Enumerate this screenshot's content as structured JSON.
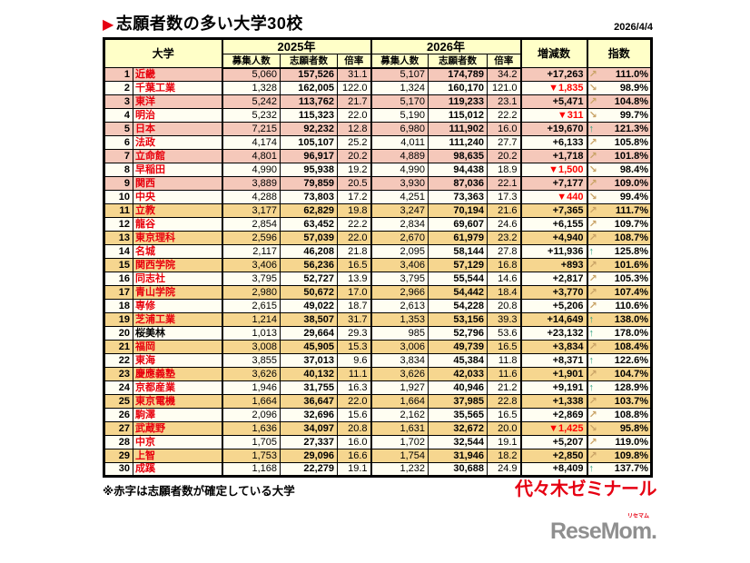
{
  "title": "志願者数の多い大学30校",
  "date": "2026/4/4",
  "footnote": "※赤字は志願者数が確定している大学",
  "logos": {
    "yoyogi": "代々木ゼミナール",
    "resemom": "ReseMom.",
    "resemom_kana": "リセマム"
  },
  "colors": {
    "accent_red": "#e60012",
    "row_pink": "#f5c8ba",
    "row_tan": "#f6d68f",
    "header_yellow": "#ffffc8",
    "arrow_tan": "#c9a366",
    "arrow_green": "#2fa183",
    "negative_red": "#ff0000"
  },
  "table": {
    "headers": {
      "university": "大学",
      "y2025": "2025年",
      "y2026": "2026年",
      "recruit": "募集人数",
      "applicants": "志願者数",
      "ratio": "倍率",
      "change": "増減数",
      "index": "指数"
    },
    "rows": [
      {
        "rank": 1,
        "name": "近畿",
        "confirmed": true,
        "recruit_2025": "5,060",
        "applicants_2025": "157,526",
        "ratio_2025": "31.1",
        "recruit_2026": "5,107",
        "applicants_2026": "174,789",
        "ratio_2026": "34.2",
        "change": "+17,263",
        "arrow": "up-right",
        "index": "111.0%"
      },
      {
        "rank": 2,
        "name": "千葉工業",
        "confirmed": true,
        "recruit_2025": "1,328",
        "applicants_2025": "162,005",
        "ratio_2025": "122.0",
        "recruit_2026": "1,324",
        "applicants_2026": "160,170",
        "ratio_2026": "121.0",
        "change": "▼1,835",
        "arrow": "down-right",
        "index": "98.9%"
      },
      {
        "rank": 3,
        "name": "東洋",
        "confirmed": true,
        "recruit_2025": "5,242",
        "applicants_2025": "113,762",
        "ratio_2025": "21.7",
        "recruit_2026": "5,170",
        "applicants_2026": "119,233",
        "ratio_2026": "23.1",
        "change": "+5,471",
        "arrow": "up-right",
        "index": "104.8%"
      },
      {
        "rank": 4,
        "name": "明治",
        "confirmed": true,
        "recruit_2025": "5,232",
        "applicants_2025": "115,323",
        "ratio_2025": "22.0",
        "recruit_2026": "5,190",
        "applicants_2026": "115,012",
        "ratio_2026": "22.2",
        "change": "▼311",
        "arrow": "down-right",
        "index": "99.7%"
      },
      {
        "rank": 5,
        "name": "日本",
        "confirmed": true,
        "recruit_2025": "7,215",
        "applicants_2025": "92,232",
        "ratio_2025": "12.8",
        "recruit_2026": "6,980",
        "applicants_2026": "111,902",
        "ratio_2026": "16.0",
        "change": "+19,670",
        "arrow": "up",
        "index": "121.3%"
      },
      {
        "rank": 6,
        "name": "法政",
        "confirmed": true,
        "recruit_2025": "4,174",
        "applicants_2025": "105,107",
        "ratio_2025": "25.2",
        "recruit_2026": "4,011",
        "applicants_2026": "111,240",
        "ratio_2026": "27.7",
        "change": "+6,133",
        "arrow": "up-right",
        "index": "105.8%"
      },
      {
        "rank": 7,
        "name": "立命館",
        "confirmed": true,
        "recruit_2025": "4,801",
        "applicants_2025": "96,917",
        "ratio_2025": "20.2",
        "recruit_2026": "4,889",
        "applicants_2026": "98,635",
        "ratio_2026": "20.2",
        "change": "+1,718",
        "arrow": "up-right",
        "index": "101.8%"
      },
      {
        "rank": 8,
        "name": "早稲田",
        "confirmed": true,
        "recruit_2025": "4,990",
        "applicants_2025": "95,938",
        "ratio_2025": "19.2",
        "recruit_2026": "4,990",
        "applicants_2026": "94,438",
        "ratio_2026": "18.9",
        "change": "▼1,500",
        "arrow": "down-right",
        "index": "98.4%"
      },
      {
        "rank": 9,
        "name": "関西",
        "confirmed": true,
        "recruit_2025": "3,889",
        "applicants_2025": "79,859",
        "ratio_2025": "20.5",
        "recruit_2026": "3,930",
        "applicants_2026": "87,036",
        "ratio_2026": "22.1",
        "change": "+7,177",
        "arrow": "up-right",
        "index": "109.0%"
      },
      {
        "rank": 10,
        "name": "中央",
        "confirmed": true,
        "recruit_2025": "4,288",
        "applicants_2025": "73,803",
        "ratio_2025": "17.2",
        "recruit_2026": "4,251",
        "applicants_2026": "73,363",
        "ratio_2026": "17.3",
        "change": "▼440",
        "arrow": "down-right",
        "index": "99.4%"
      },
      {
        "rank": 11,
        "name": "立教",
        "confirmed": true,
        "recruit_2025": "3,177",
        "applicants_2025": "62,829",
        "ratio_2025": "19.8",
        "recruit_2026": "3,247",
        "applicants_2026": "70,194",
        "ratio_2026": "21.6",
        "change": "+7,365",
        "arrow": "up-right",
        "index": "111.7%"
      },
      {
        "rank": 12,
        "name": "龍谷",
        "confirmed": true,
        "recruit_2025": "2,854",
        "applicants_2025": "63,452",
        "ratio_2025": "22.2",
        "recruit_2026": "2,834",
        "applicants_2026": "69,607",
        "ratio_2026": "24.6",
        "change": "+6,155",
        "arrow": "up-right",
        "index": "109.7%"
      },
      {
        "rank": 13,
        "name": "東京理科",
        "confirmed": true,
        "recruit_2025": "2,596",
        "applicants_2025": "57,039",
        "ratio_2025": "22.0",
        "recruit_2026": "2,670",
        "applicants_2026": "61,979",
        "ratio_2026": "23.2",
        "change": "+4,940",
        "arrow": "up-right",
        "index": "108.7%"
      },
      {
        "rank": 14,
        "name": "名城",
        "confirmed": true,
        "recruit_2025": "2,117",
        "applicants_2025": "46,208",
        "ratio_2025": "21.8",
        "recruit_2026": "2,095",
        "applicants_2026": "58,144",
        "ratio_2026": "27.8",
        "change": "+11,936",
        "arrow": "up",
        "index": "125.8%"
      },
      {
        "rank": 15,
        "name": "関西学院",
        "confirmed": true,
        "recruit_2025": "3,406",
        "applicants_2025": "56,236",
        "ratio_2025": "16.5",
        "recruit_2026": "3,406",
        "applicants_2026": "57,129",
        "ratio_2026": "16.8",
        "change": "+893",
        "arrow": "up-right",
        "index": "101.6%"
      },
      {
        "rank": 16,
        "name": "同志社",
        "confirmed": true,
        "recruit_2025": "3,795",
        "applicants_2025": "52,727",
        "ratio_2025": "13.9",
        "recruit_2026": "3,795",
        "applicants_2026": "55,544",
        "ratio_2026": "14.6",
        "change": "+2,817",
        "arrow": "up-right",
        "index": "105.3%"
      },
      {
        "rank": 17,
        "name": "青山学院",
        "confirmed": true,
        "recruit_2025": "2,980",
        "applicants_2025": "50,672",
        "ratio_2025": "17.0",
        "recruit_2026": "2,966",
        "applicants_2026": "54,442",
        "ratio_2026": "18.4",
        "change": "+3,770",
        "arrow": "up-right",
        "index": "107.4%"
      },
      {
        "rank": 18,
        "name": "専修",
        "confirmed": true,
        "recruit_2025": "2,615",
        "applicants_2025": "49,022",
        "ratio_2025": "18.7",
        "recruit_2026": "2,613",
        "applicants_2026": "54,228",
        "ratio_2026": "20.8",
        "change": "+5,206",
        "arrow": "up-right",
        "index": "110.6%"
      },
      {
        "rank": 19,
        "name": "芝浦工業",
        "confirmed": true,
        "recruit_2025": "1,214",
        "applicants_2025": "38,507",
        "ratio_2025": "31.7",
        "recruit_2026": "1,353",
        "applicants_2026": "53,156",
        "ratio_2026": "39.3",
        "change": "+14,649",
        "arrow": "up",
        "index": "138.0%"
      },
      {
        "rank": 20,
        "name": "桜美林",
        "confirmed": false,
        "recruit_2025": "1,013",
        "applicants_2025": "29,664",
        "ratio_2025": "29.3",
        "recruit_2026": "985",
        "applicants_2026": "52,796",
        "ratio_2026": "53.6",
        "change": "+23,132",
        "arrow": "up",
        "index": "178.0%"
      },
      {
        "rank": 21,
        "name": "福岡",
        "confirmed": true,
        "recruit_2025": "3,008",
        "applicants_2025": "45,905",
        "ratio_2025": "15.3",
        "recruit_2026": "3,006",
        "applicants_2026": "49,739",
        "ratio_2026": "16.5",
        "change": "+3,834",
        "arrow": "up-right",
        "index": "108.4%"
      },
      {
        "rank": 22,
        "name": "東海",
        "confirmed": true,
        "recruit_2025": "3,855",
        "applicants_2025": "37,013",
        "ratio_2025": "9.6",
        "recruit_2026": "3,834",
        "applicants_2026": "45,384",
        "ratio_2026": "11.8",
        "change": "+8,371",
        "arrow": "up",
        "index": "122.6%"
      },
      {
        "rank": 23,
        "name": "慶應義塾",
        "confirmed": true,
        "recruit_2025": "3,626",
        "applicants_2025": "40,132",
        "ratio_2025": "11.1",
        "recruit_2026": "3,626",
        "applicants_2026": "42,033",
        "ratio_2026": "11.6",
        "change": "+1,901",
        "arrow": "up-right",
        "index": "104.7%"
      },
      {
        "rank": 24,
        "name": "京都産業",
        "confirmed": true,
        "recruit_2025": "1,946",
        "applicants_2025": "31,755",
        "ratio_2025": "16.3",
        "recruit_2026": "1,927",
        "applicants_2026": "40,946",
        "ratio_2026": "21.2",
        "change": "+9,191",
        "arrow": "up",
        "index": "128.9%"
      },
      {
        "rank": 25,
        "name": "東京電機",
        "confirmed": true,
        "recruit_2025": "1,664",
        "applicants_2025": "36,647",
        "ratio_2025": "22.0",
        "recruit_2026": "1,664",
        "applicants_2026": "37,985",
        "ratio_2026": "22.8",
        "change": "+1,338",
        "arrow": "up-right",
        "index": "103.7%"
      },
      {
        "rank": 26,
        "name": "駒澤",
        "confirmed": true,
        "recruit_2025": "2,096",
        "applicants_2025": "32,696",
        "ratio_2025": "15.6",
        "recruit_2026": "2,162",
        "applicants_2026": "35,565",
        "ratio_2026": "16.5",
        "change": "+2,869",
        "arrow": "up-right",
        "index": "108.8%"
      },
      {
        "rank": 27,
        "name": "武蔵野",
        "confirmed": true,
        "recruit_2025": "1,636",
        "applicants_2025": "34,097",
        "ratio_2025": "20.8",
        "recruit_2026": "1,631",
        "applicants_2026": "32,672",
        "ratio_2026": "20.0",
        "change": "▼1,425",
        "arrow": "down-right",
        "index": "95.8%"
      },
      {
        "rank": 28,
        "name": "中京",
        "confirmed": true,
        "recruit_2025": "1,705",
        "applicants_2025": "27,337",
        "ratio_2025": "16.0",
        "recruit_2026": "1,702",
        "applicants_2026": "32,544",
        "ratio_2026": "19.1",
        "change": "+5,207",
        "arrow": "up-right",
        "index": "119.0%"
      },
      {
        "rank": 29,
        "name": "上智",
        "confirmed": true,
        "recruit_2025": "1,753",
        "applicants_2025": "29,096",
        "ratio_2025": "16.6",
        "recruit_2026": "1,754",
        "applicants_2026": "31,946",
        "ratio_2026": "18.2",
        "change": "+2,850",
        "arrow": "up-right",
        "index": "109.8%"
      },
      {
        "rank": 30,
        "name": "成蹊",
        "confirmed": true,
        "recruit_2025": "1,168",
        "applicants_2025": "22,279",
        "ratio_2025": "19.1",
        "recruit_2026": "1,232",
        "applicants_2026": "30,688",
        "ratio_2026": "24.9",
        "change": "+8,409",
        "arrow": "up",
        "index": "137.7%"
      }
    ]
  }
}
